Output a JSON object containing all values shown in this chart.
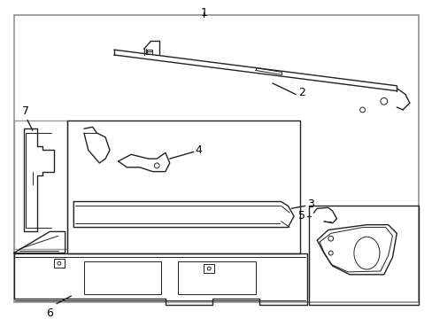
{
  "bg_color": "#ffffff",
  "border_color": "#999999",
  "line_color": "#222222",
  "label_color": "#000000",
  "figsize": [
    4.89,
    3.6
  ],
  "dpi": 100
}
